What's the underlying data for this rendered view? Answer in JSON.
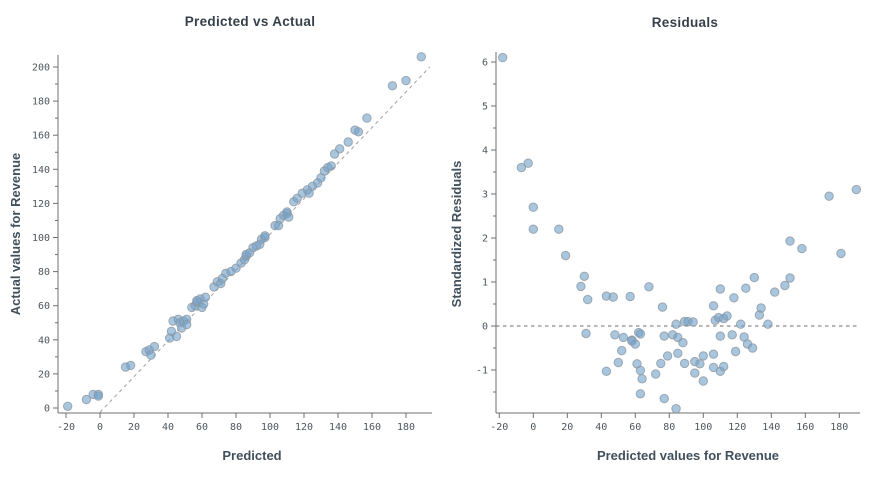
{
  "page": {
    "background": "#ffffff"
  },
  "style": {
    "marker_fill": "#74a3cb",
    "marker_edge": "#8c97a0",
    "axis_color": "#6f6f6f",
    "tick_label_color": "#4d565e",
    "title_color": "#36404b"
  },
  "chart_data": [
    {
      "type": "scatter",
      "title": "Predicted vs Actual",
      "xlabel": "Predicted",
      "ylabel": "Actual values for Revenue",
      "xlim": [
        -24.7,
        195.3
      ],
      "ylim": [
        -2.9,
        207
      ],
      "x_ticks": [
        -20,
        0,
        20,
        40,
        60,
        80,
        100,
        120,
        140,
        160,
        180
      ],
      "y_ticks": [
        0,
        20,
        40,
        60,
        80,
        100,
        120,
        140,
        160,
        180,
        200
      ],
      "y_minor_step": 10,
      "grid": false,
      "legend": null,
      "ref_line": {
        "kind": "identity-dashed",
        "x1": 0,
        "y1": -2.5,
        "x2": 194,
        "y2": 200,
        "color": "#a0a0a0"
      },
      "points": [
        [
          -19,
          1
        ],
        [
          -8,
          5
        ],
        [
          -4,
          8
        ],
        [
          -1,
          8
        ],
        [
          -1,
          7
        ],
        [
          15,
          24
        ],
        [
          18,
          25
        ],
        [
          27,
          33
        ],
        [
          29,
          34
        ],
        [
          30,
          31
        ],
        [
          32,
          36
        ],
        [
          41,
          41
        ],
        [
          42,
          45
        ],
        [
          45,
          42
        ],
        [
          43,
          51
        ],
        [
          46,
          52
        ],
        [
          47,
          50
        ],
        [
          48,
          47
        ],
        [
          49,
          51
        ],
        [
          51,
          52
        ],
        [
          51,
          49
        ],
        [
          54,
          59
        ],
        [
          56,
          60
        ],
        [
          57,
          62
        ],
        [
          57,
          63
        ],
        [
          59,
          64
        ],
        [
          60,
          59
        ],
        [
          61,
          61
        ],
        [
          62,
          65
        ],
        [
          67,
          71
        ],
        [
          69,
          74
        ],
        [
          71,
          73
        ],
        [
          72,
          76
        ],
        [
          74,
          79
        ],
        [
          77,
          80
        ],
        [
          80,
          82
        ],
        [
          83,
          85
        ],
        [
          85,
          87
        ],
        [
          86,
          89
        ],
        [
          86,
          90
        ],
        [
          88,
          91
        ],
        [
          90,
          94
        ],
        [
          92,
          95
        ],
        [
          94,
          96
        ],
        [
          95,
          99
        ],
        [
          97,
          100
        ],
        [
          97,
          101
        ],
        [
          103,
          107
        ],
        [
          105,
          107
        ],
        [
          106,
          111
        ],
        [
          108,
          113
        ],
        [
          110,
          114
        ],
        [
          110,
          115
        ],
        [
          111,
          112
        ],
        [
          114,
          121
        ],
        [
          116,
          123
        ],
        [
          119,
          126
        ],
        [
          122,
          128
        ],
        [
          123,
          126
        ],
        [
          125,
          130
        ],
        [
          128,
          132
        ],
        [
          130,
          135
        ],
        [
          132,
          139
        ],
        [
          134,
          141
        ],
        [
          136,
          142
        ],
        [
          138,
          149
        ],
        [
          141,
          152
        ],
        [
          146,
          156
        ],
        [
          150,
          163
        ],
        [
          152,
          162
        ],
        [
          157,
          170
        ],
        [
          172,
          189
        ],
        [
          180,
          192
        ],
        [
          189,
          206
        ]
      ]
    },
    {
      "type": "scatter",
      "title": "Residuals",
      "xlabel": "Predicted values for Revenue",
      "ylabel": "Standardized Residuals",
      "xlim": [
        -21.4,
        192.2
      ],
      "ylim": [
        -1.98,
        6.23
      ],
      "x_ticks": [
        -20,
        0,
        20,
        40,
        60,
        80,
        100,
        120,
        140,
        160,
        180
      ],
      "y_ticks": [
        -1,
        0,
        1,
        2,
        3,
        4,
        5,
        6
      ],
      "y_minor_step": 0.5,
      "grid": false,
      "legend": null,
      "ref_line": {
        "kind": "zero-dashed",
        "y": 0,
        "color": "#6e6e6e"
      },
      "points": [
        [
          -18,
          6.1
        ],
        [
          -7,
          3.6
        ],
        [
          -3,
          3.7
        ],
        [
          0,
          2.7
        ],
        [
          0,
          2.2
        ],
        [
          15,
          2.2
        ],
        [
          19,
          1.6
        ],
        [
          28,
          0.9
        ],
        [
          30,
          1.13
        ],
        [
          31,
          -0.17
        ],
        [
          32,
          0.6
        ],
        [
          43,
          0.68
        ],
        [
          47,
          0.66
        ],
        [
          43,
          -1.03
        ],
        [
          48,
          -0.2
        ],
        [
          50,
          -0.83
        ],
        [
          52,
          -0.56
        ],
        [
          53,
          -0.26
        ],
        [
          57,
          0.67
        ],
        [
          58,
          -0.32
        ],
        [
          58,
          -0.34
        ],
        [
          60,
          -0.41
        ],
        [
          61,
          -0.86
        ],
        [
          62,
          -0.15
        ],
        [
          63,
          -0.18
        ],
        [
          63,
          -1.01
        ],
        [
          63,
          -1.54
        ],
        [
          64,
          -1.2
        ],
        [
          68,
          0.89
        ],
        [
          72,
          -1.09
        ],
        [
          75,
          -0.85
        ],
        [
          76,
          0.43
        ],
        [
          77,
          -1.65
        ],
        [
          77,
          -0.23
        ],
        [
          79,
          -0.68
        ],
        [
          82,
          -0.2
        ],
        [
          84,
          0.04
        ],
        [
          84,
          -1.88
        ],
        [
          85,
          -0.26
        ],
        [
          85,
          -0.62
        ],
        [
          88,
          -0.38
        ],
        [
          89,
          0.1
        ],
        [
          89,
          -0.85
        ],
        [
          91,
          0.1
        ],
        [
          94,
          0.09
        ],
        [
          95,
          -0.81
        ],
        [
          95,
          -1.07
        ],
        [
          98,
          -0.86
        ],
        [
          100,
          -0.68
        ],
        [
          100,
          -1.25
        ],
        [
          106,
          0.46
        ],
        [
          106,
          -0.64
        ],
        [
          106,
          -0.94
        ],
        [
          107,
          0.13
        ],
        [
          109,
          0.19
        ],
        [
          110,
          0.84
        ],
        [
          110,
          -0.23
        ],
        [
          110,
          -1.03
        ],
        [
          112,
          0.17
        ],
        [
          112,
          -0.92
        ],
        [
          114,
          0.23
        ],
        [
          117,
          -0.2
        ],
        [
          118,
          0.64
        ],
        [
          119,
          -0.58
        ],
        [
          122,
          0.04
        ],
        [
          124,
          -0.25
        ],
        [
          125,
          0.86
        ],
        [
          126,
          -0.41
        ],
        [
          129,
          -0.5
        ],
        [
          130,
          1.1
        ],
        [
          133,
          0.25
        ],
        [
          134,
          0.41
        ],
        [
          138,
          0.04
        ],
        [
          142,
          0.77
        ],
        [
          148,
          0.92
        ],
        [
          151,
          1.09
        ],
        [
          151,
          1.93
        ],
        [
          158,
          1.76
        ],
        [
          174,
          2.95
        ],
        [
          181,
          1.65
        ],
        [
          190,
          3.1
        ]
      ]
    }
  ]
}
